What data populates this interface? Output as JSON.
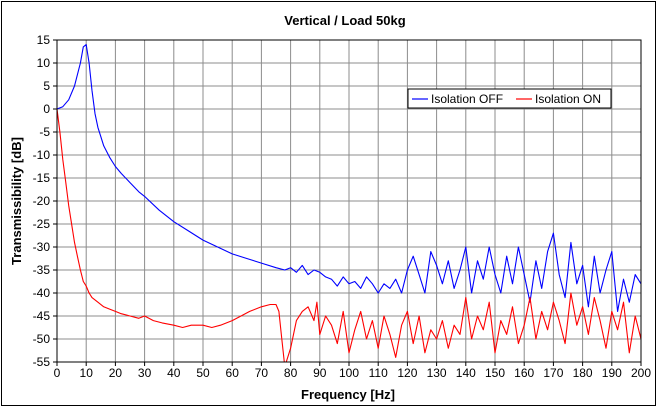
{
  "chart_data": {
    "type": "line",
    "title": "Vertical / Load 50kg",
    "xlabel": "Frequency [Hz]",
    "ylabel": "Transmissibility [dB]",
    "xlim": [
      0,
      200
    ],
    "ylim": [
      -55,
      15
    ],
    "xticks": [
      0,
      10,
      20,
      30,
      40,
      50,
      60,
      70,
      80,
      90,
      100,
      110,
      120,
      130,
      140,
      150,
      160,
      170,
      180,
      190,
      200
    ],
    "yticks": [
      15,
      10,
      5,
      0,
      -5,
      -10,
      -15,
      -20,
      -25,
      -30,
      -35,
      -40,
      -45,
      -50,
      -55
    ],
    "grid": true,
    "legend_position": "top-right",
    "series": [
      {
        "name": "Isolation OFF",
        "color": "#0000ff",
        "x": [
          0,
          2,
          4,
          6,
          8,
          9,
          10,
          11,
          12,
          13,
          14,
          15,
          16,
          18,
          20,
          22,
          25,
          28,
          30,
          35,
          40,
          45,
          50,
          55,
          60,
          65,
          70,
          75,
          78,
          80,
          82,
          84,
          86,
          88,
          90,
          92,
          94,
          96,
          98,
          100,
          102,
          104,
          106,
          108,
          110,
          112,
          114,
          116,
          118,
          120,
          122,
          124,
          126,
          128,
          130,
          132,
          134,
          136,
          138,
          140,
          142,
          144,
          146,
          148,
          150,
          152,
          154,
          156,
          158,
          160,
          162,
          164,
          166,
          168,
          170,
          172,
          174,
          176,
          178,
          180,
          182,
          184,
          186,
          188,
          190,
          192,
          194,
          196,
          198,
          200
        ],
        "y": [
          0,
          0.5,
          2,
          5,
          10,
          13.5,
          14,
          10,
          4,
          -1,
          -4,
          -6,
          -8,
          -10.5,
          -12.5,
          -14,
          -16,
          -18,
          -19,
          -22,
          -24.5,
          -26.5,
          -28.5,
          -30,
          -31.5,
          -32.5,
          -33.5,
          -34.5,
          -35,
          -34.5,
          -35.5,
          -34,
          -36,
          -35,
          -35.5,
          -36.5,
          -37,
          -38.5,
          -36.5,
          -38,
          -37.5,
          -39,
          -36.5,
          -38,
          -40,
          -38,
          -39,
          -37,
          -40,
          -35,
          -32,
          -36,
          -40,
          -31,
          -34,
          -38,
          -33,
          -39,
          -35,
          -30,
          -40,
          -33,
          -37,
          -30,
          -36,
          -40,
          -32,
          -38,
          -30,
          -36,
          -42,
          -33,
          -39,
          -31,
          -27,
          -36,
          -41,
          -29,
          -38,
          -34,
          -43,
          -32,
          -40,
          -35,
          -31,
          -44,
          -37,
          -42,
          -36,
          -38
        ]
      },
      {
        "name": "Isolation ON",
        "color": "#ff0000",
        "x": [
          0,
          1,
          2,
          3,
          4,
          5,
          6,
          7,
          8,
          9,
          10,
          11,
          12,
          14,
          16,
          18,
          20,
          22,
          25,
          28,
          30,
          33,
          36,
          40,
          43,
          46,
          50,
          53,
          56,
          60,
          63,
          66,
          70,
          73,
          75,
          76,
          77,
          78,
          80,
          82,
          84,
          86,
          88,
          89,
          90,
          92,
          94,
          96,
          98,
          100,
          102,
          104,
          106,
          108,
          110,
          112,
          114,
          116,
          118,
          120,
          122,
          124,
          126,
          128,
          130,
          132,
          134,
          136,
          138,
          140,
          142,
          144,
          146,
          148,
          150,
          152,
          154,
          156,
          158,
          160,
          162,
          164,
          166,
          168,
          170,
          172,
          174,
          176,
          178,
          180,
          182,
          184,
          186,
          188,
          190,
          192,
          194,
          196,
          198,
          200
        ],
        "y": [
          0,
          -5,
          -11,
          -16,
          -21,
          -25,
          -29,
          -32,
          -35,
          -37.5,
          -38.5,
          -40,
          -41,
          -42,
          -43,
          -43.5,
          -44,
          -44.5,
          -45,
          -45.5,
          -45,
          -46,
          -46.5,
          -47,
          -47.5,
          -47,
          -47,
          -47.5,
          -47,
          -46,
          -45,
          -44,
          -43,
          -42.5,
          -42.5,
          -44,
          -50,
          -56,
          -52,
          -46,
          -44,
          -43,
          -46,
          -42,
          -49,
          -45,
          -47,
          -51,
          -44,
          -53,
          -48,
          -44,
          -50,
          -46,
          -52,
          -45,
          -49,
          -54,
          -47,
          -44,
          -51,
          -45,
          -53,
          -48,
          -50,
          -46,
          -52,
          -47,
          -49,
          -41,
          -50,
          -45,
          -48,
          -42,
          -53,
          -46,
          -49,
          -43,
          -51,
          -47,
          -41,
          -50,
          -44,
          -48,
          -42,
          -46,
          -51,
          -40,
          -47,
          -43,
          -49,
          -41,
          -46,
          -52,
          -44,
          -48,
          -42,
          -53,
          -45,
          -50
        ]
      }
    ]
  }
}
